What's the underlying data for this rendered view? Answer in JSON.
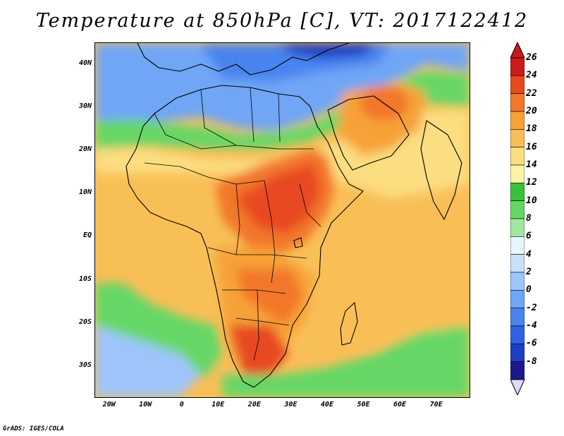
{
  "title": "Temperature at 850hPa [C], VT: 2017122412",
  "credit": "GrADS: IGES/COLA",
  "map": {
    "variable": "temperature_850hPa",
    "units": "C",
    "valid_time": "2017122412",
    "lon_range": [
      -24,
      79
    ],
    "lat_range": [
      -37,
      45
    ],
    "lat_ticks": [
      {
        "value": 40,
        "label": "40N"
      },
      {
        "value": 30,
        "label": "30N"
      },
      {
        "value": 20,
        "label": "20N"
      },
      {
        "value": 10,
        "label": "10N"
      },
      {
        "value": 0,
        "label": "EQ"
      },
      {
        "value": -10,
        "label": "10S"
      },
      {
        "value": -20,
        "label": "20S"
      },
      {
        "value": -30,
        "label": "30S"
      }
    ],
    "lon_ticks": [
      {
        "value": -20,
        "label": "20W"
      },
      {
        "value": -10,
        "label": "10W"
      },
      {
        "value": 0,
        "label": "0"
      },
      {
        "value": 10,
        "label": "10E"
      },
      {
        "value": 20,
        "label": "20E"
      },
      {
        "value": 30,
        "label": "30E"
      },
      {
        "value": 40,
        "label": "40E"
      },
      {
        "value": 50,
        "label": "50E"
      },
      {
        "value": 60,
        "label": "60E"
      },
      {
        "value": 70,
        "label": "70E"
      }
    ]
  },
  "colorbar": {
    "labels": [
      "26",
      "24",
      "22",
      "20",
      "18",
      "16",
      "14",
      "12",
      "10",
      "8",
      "6",
      "4",
      "2",
      "0",
      "-2",
      "-4",
      "-6",
      "-8"
    ],
    "levels": [
      -8,
      -6,
      -4,
      -2,
      0,
      2,
      4,
      6,
      8,
      10,
      12,
      14,
      16,
      18,
      20,
      22,
      24,
      26
    ],
    "colors": [
      "#1a1a8c",
      "#1c3fc4",
      "#2e62e3",
      "#4884ee",
      "#6fa6f5",
      "#9ec5fa",
      "#c8e1fb",
      "#e6f6fb",
      "#a0e8a0",
      "#66d766",
      "#3bc23b",
      "#fdf2a6",
      "#fcdd80",
      "#f9bf57",
      "#f6a238",
      "#f2772a",
      "#e84a20",
      "#cc1a1a"
    ]
  }
}
